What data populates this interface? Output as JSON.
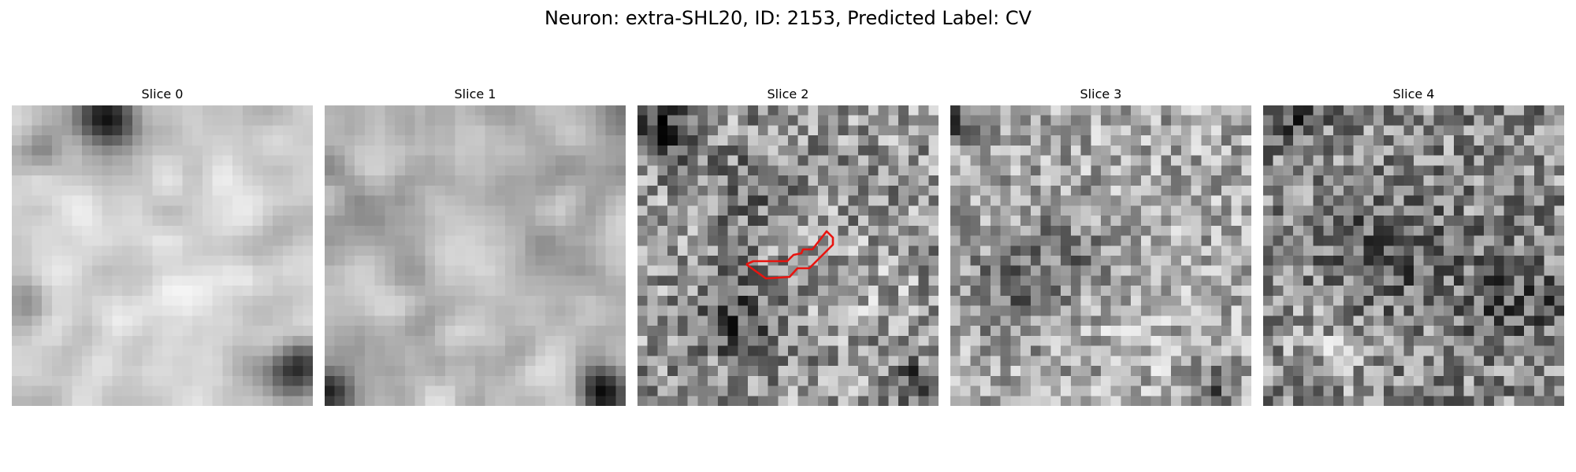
{
  "suptitle": "Neuron: extra-SHL20, ID: 2153, Predicted Label: CV",
  "panels": [
    {
      "title": "Slice 0"
    },
    {
      "title": "Slice 1"
    },
    {
      "title": "Slice 2",
      "overlay": true
    },
    {
      "title": "Slice 3"
    },
    {
      "title": "Slice 4"
    }
  ],
  "overlay_color": "#e8140f"
}
